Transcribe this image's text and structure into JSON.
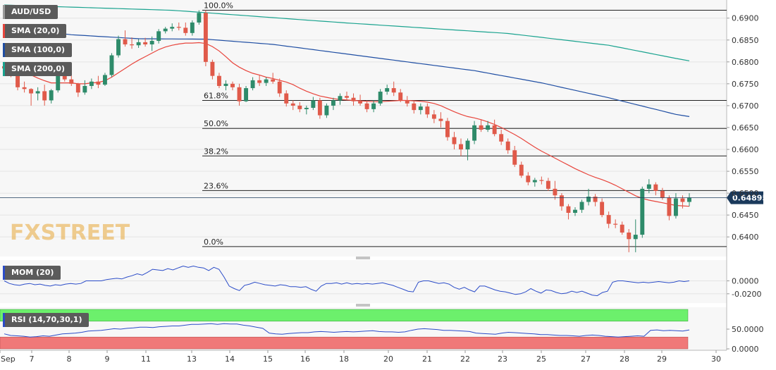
{
  "chart_data": {
    "type": "candlestick",
    "symbol": "AUD/USD",
    "current_price": "0.64895",
    "x_ticks": [
      "Sep",
      "7",
      "8",
      "9",
      "11",
      "13",
      "14",
      "15",
      "16",
      "18",
      "20",
      "21",
      "22",
      "23",
      "25",
      "27",
      "28",
      "29",
      "30"
    ],
    "y_ticks": [
      "0.6900",
      "0.6850",
      "0.6800",
      "0.6750",
      "0.6700",
      "0.6650",
      "0.6600",
      "0.6550",
      "0.6500",
      "0.6450",
      "0.6400"
    ],
    "ylim": [
      0.636,
      0.6935
    ],
    "candles": [
      [
        0.679,
        0.68,
        0.6778,
        0.6785
      ],
      [
        0.6785,
        0.6795,
        0.6765,
        0.677
      ],
      [
        0.677,
        0.6775,
        0.6735,
        0.6742
      ],
      [
        0.6742,
        0.6755,
        0.673,
        0.6738
      ],
      [
        0.6738,
        0.674,
        0.67,
        0.6728
      ],
      [
        0.6728,
        0.6742,
        0.6712,
        0.6733
      ],
      [
        0.6733,
        0.6748,
        0.67,
        0.6712
      ],
      [
        0.6712,
        0.6738,
        0.6705,
        0.6735
      ],
      [
        0.6735,
        0.6775,
        0.673,
        0.6768
      ],
      [
        0.6768,
        0.6782,
        0.6755,
        0.676
      ],
      [
        0.676,
        0.677,
        0.6745,
        0.675
      ],
      [
        0.675,
        0.6752,
        0.672,
        0.673
      ],
      [
        0.673,
        0.6758,
        0.6725,
        0.6745
      ],
      [
        0.6745,
        0.6762,
        0.6738,
        0.6755
      ],
      [
        0.6755,
        0.6768,
        0.674,
        0.6748
      ],
      [
        0.6748,
        0.6775,
        0.6745,
        0.677
      ],
      [
        0.677,
        0.682,
        0.6765,
        0.6815
      ],
      [
        0.6815,
        0.686,
        0.681,
        0.6852
      ],
      [
        0.6852,
        0.6872,
        0.6835,
        0.684
      ],
      [
        0.684,
        0.6856,
        0.683,
        0.6838
      ],
      [
        0.6838,
        0.6852,
        0.6832,
        0.6845
      ],
      [
        0.6845,
        0.6855,
        0.6835,
        0.684
      ],
      [
        0.684,
        0.6858,
        0.6825,
        0.6848
      ],
      [
        0.6848,
        0.6875,
        0.6842,
        0.687
      ],
      [
        0.687,
        0.688,
        0.6865,
        0.6876
      ],
      [
        0.6876,
        0.6888,
        0.687,
        0.688
      ],
      [
        0.688,
        0.689,
        0.6872,
        0.6878
      ],
      [
        0.6878,
        0.689,
        0.686,
        0.6866
      ],
      [
        0.6866,
        0.6895,
        0.686,
        0.689
      ],
      [
        0.689,
        0.6918,
        0.6885,
        0.6912
      ],
      [
        0.6912,
        0.6918,
        0.679,
        0.68
      ],
      [
        0.68,
        0.6805,
        0.676,
        0.6768
      ],
      [
        0.6768,
        0.6775,
        0.674,
        0.6745
      ],
      [
        0.6745,
        0.6758,
        0.6735,
        0.675
      ],
      [
        0.675,
        0.6755,
        0.6735,
        0.6742
      ],
      [
        0.6742,
        0.675,
        0.67,
        0.671
      ],
      [
        0.671,
        0.6745,
        0.6708,
        0.674
      ],
      [
        0.674,
        0.6765,
        0.6735,
        0.6758
      ],
      [
        0.6758,
        0.677,
        0.6745,
        0.6752
      ],
      [
        0.6752,
        0.6765,
        0.6745,
        0.676
      ],
      [
        0.676,
        0.6775,
        0.675,
        0.6755
      ],
      [
        0.6755,
        0.6762,
        0.672,
        0.6728
      ],
      [
        0.6728,
        0.6735,
        0.6698,
        0.6705
      ],
      [
        0.6705,
        0.6712,
        0.669,
        0.67
      ],
      [
        0.67,
        0.6708,
        0.6685,
        0.6692
      ],
      [
        0.6692,
        0.67,
        0.668,
        0.6695
      ],
      [
        0.6695,
        0.672,
        0.669,
        0.6712
      ],
      [
        0.6712,
        0.6718,
        0.667,
        0.6678
      ],
      [
        0.6678,
        0.6705,
        0.6672,
        0.67
      ],
      [
        0.67,
        0.6718,
        0.669,
        0.6712
      ],
      [
        0.6712,
        0.6728,
        0.6702,
        0.6722
      ],
      [
        0.6722,
        0.6732,
        0.6712,
        0.6718
      ],
      [
        0.6718,
        0.6728,
        0.67,
        0.671
      ],
      [
        0.671,
        0.6725,
        0.67,
        0.6705
      ],
      [
        0.6705,
        0.6712,
        0.6685,
        0.6692
      ],
      [
        0.6692,
        0.6712,
        0.6685,
        0.6705
      ],
      [
        0.6705,
        0.6738,
        0.67,
        0.6732
      ],
      [
        0.6732,
        0.6748,
        0.6725,
        0.674
      ],
      [
        0.674,
        0.6755,
        0.6722,
        0.673
      ],
      [
        0.673,
        0.6738,
        0.6708,
        0.6712
      ],
      [
        0.6712,
        0.6722,
        0.6698,
        0.6705
      ],
      [
        0.6705,
        0.6712,
        0.6682,
        0.669
      ],
      [
        0.669,
        0.6705,
        0.668,
        0.6698
      ],
      [
        0.6698,
        0.6705,
        0.6672,
        0.668
      ],
      [
        0.668,
        0.669,
        0.666,
        0.667
      ],
      [
        0.667,
        0.6685,
        0.665,
        0.6665
      ],
      [
        0.6665,
        0.6672,
        0.662,
        0.6628
      ],
      [
        0.6628,
        0.664,
        0.66,
        0.6612
      ],
      [
        0.6612,
        0.6625,
        0.6585,
        0.66
      ],
      [
        0.66,
        0.6625,
        0.6575,
        0.662
      ],
      [
        0.662,
        0.6665,
        0.6612,
        0.6655
      ],
      [
        0.6655,
        0.6668,
        0.664,
        0.6645
      ],
      [
        0.6645,
        0.6665,
        0.664,
        0.6655
      ],
      [
        0.6655,
        0.6668,
        0.663,
        0.6635
      ],
      [
        0.6635,
        0.6645,
        0.661,
        0.6618
      ],
      [
        0.6618,
        0.6625,
        0.659,
        0.6598
      ],
      [
        0.6598,
        0.6608,
        0.656,
        0.6565
      ],
      [
        0.6565,
        0.6572,
        0.6535,
        0.654
      ],
      [
        0.654,
        0.6548,
        0.6518,
        0.6525
      ],
      [
        0.6525,
        0.6535,
        0.6515,
        0.653
      ],
      [
        0.653,
        0.6538,
        0.652,
        0.6528
      ],
      [
        0.6528,
        0.6535,
        0.6505,
        0.651
      ],
      [
        0.651,
        0.6528,
        0.6485,
        0.6495
      ],
      [
        0.6495,
        0.65,
        0.646,
        0.647
      ],
      [
        0.647,
        0.6475,
        0.644,
        0.6455
      ],
      [
        0.6455,
        0.6468,
        0.6448,
        0.6462
      ],
      [
        0.6462,
        0.6485,
        0.6455,
        0.648
      ],
      [
        0.648,
        0.651,
        0.6472,
        0.6492
      ],
      [
        0.6492,
        0.6498,
        0.647,
        0.648
      ],
      [
        0.648,
        0.6488,
        0.6445,
        0.645
      ],
      [
        0.645,
        0.6458,
        0.642,
        0.643
      ],
      [
        0.643,
        0.644,
        0.642,
        0.6428
      ],
      [
        0.6428,
        0.6435,
        0.6405,
        0.641
      ],
      [
        0.641,
        0.6418,
        0.6365,
        0.6395
      ],
      [
        0.6395,
        0.644,
        0.6365,
        0.6405
      ],
      [
        0.6405,
        0.6515,
        0.6398,
        0.651
      ],
      [
        0.651,
        0.6532,
        0.65,
        0.652
      ],
      [
        0.652,
        0.6525,
        0.6495,
        0.6505
      ],
      [
        0.6505,
        0.6512,
        0.6485,
        0.649
      ],
      [
        0.649,
        0.6495,
        0.6438,
        0.6448
      ],
      [
        0.6448,
        0.65,
        0.6442,
        0.6488
      ],
      [
        0.6488,
        0.6495,
        0.6465,
        0.648
      ],
      [
        0.648,
        0.65,
        0.647,
        0.649
      ]
    ],
    "sma_20": [
      0.6798,
      0.6792,
      0.6785,
      0.6778,
      0.677,
      0.6763,
      0.6757,
      0.6752,
      0.6752,
      0.6752,
      0.6752,
      0.675,
      0.675,
      0.6752,
      0.6753,
      0.6757,
      0.6765,
      0.6775,
      0.6785,
      0.6795,
      0.6804,
      0.6812,
      0.682,
      0.6828,
      0.6834,
      0.6838,
      0.6841,
      0.6843,
      0.6843,
      0.6844,
      0.6842,
      0.6835,
      0.6825,
      0.6812,
      0.6798,
      0.6788,
      0.678,
      0.6774,
      0.677,
      0.6765,
      0.6762,
      0.6758,
      0.6754,
      0.6748,
      0.674,
      0.6733,
      0.6727,
      0.6722,
      0.6719,
      0.6716,
      0.6714,
      0.6713,
      0.6712,
      0.6711,
      0.671,
      0.6709,
      0.6709,
      0.671,
      0.6711,
      0.6712,
      0.6712,
      0.6711,
      0.671,
      0.6708,
      0.6705,
      0.67,
      0.6693,
      0.6686,
      0.668,
      0.6675,
      0.6672,
      0.6668,
      0.6663,
      0.6657,
      0.665,
      0.6642,
      0.6634,
      0.6625,
      0.6615,
      0.6605,
      0.6596,
      0.6588,
      0.658,
      0.6572,
      0.6564,
      0.6556,
      0.6549,
      0.6542,
      0.6536,
      0.6531,
      0.6525,
      0.6518,
      0.651,
      0.6502,
      0.6494,
      0.6488,
      0.6484,
      0.6481,
      0.6478,
      0.6475,
      0.6472,
      0.6471,
      0.647
    ],
    "sma_100_anchors": [
      [
        0,
        0.688
      ],
      [
        10,
        0.6862
      ],
      [
        20,
        0.6853
      ],
      [
        30,
        0.6852
      ],
      [
        40,
        0.684
      ],
      [
        50,
        0.682
      ],
      [
        60,
        0.68
      ],
      [
        70,
        0.678
      ],
      [
        80,
        0.6752
      ],
      [
        90,
        0.6718
      ],
      [
        100,
        0.668
      ],
      [
        104,
        0.667
      ]
    ],
    "sma_200_anchors": [
      [
        0,
        0.693
      ],
      [
        25,
        0.6918
      ],
      [
        50,
        0.689
      ],
      [
        75,
        0.6865
      ],
      [
        90,
        0.6838
      ],
      [
        100,
        0.6808
      ],
      [
        104,
        0.6797
      ]
    ],
    "fibonacci": [
      {
        "label": "100.0%",
        "price": 0.6918
      },
      {
        "label": "61.8%",
        "price": 0.6712
      },
      {
        "label": "50.0%",
        "price": 0.6648
      },
      {
        "label": "38.2%",
        "price": 0.6585
      },
      {
        "label": "23.6%",
        "price": 0.6506
      },
      {
        "label": "0.0%",
        "price": 0.6378
      }
    ],
    "mom": {
      "label": "MOM (20)",
      "y_ticks": [
        "0.0000",
        "-0.0200"
      ],
      "ylim": [
        -0.03,
        0.029
      ],
      "values": [
        0.0,
        -0.004,
        -0.006,
        -0.007,
        -0.005,
        -0.004,
        -0.006,
        -0.005,
        -0.007,
        -0.008,
        -0.006,
        -0.007,
        -0.005,
        -0.004,
        -0.005,
        -0.004,
        0.0,
        0.0,
        0.0,
        0.0,
        0.002,
        0.003,
        0.004,
        0.003,
        0.006,
        0.008,
        0.011,
        0.009,
        0.013,
        0.018,
        0.017,
        0.016,
        0.019,
        0.017,
        0.02,
        0.023,
        0.021,
        0.023,
        0.021,
        0.02,
        0.016,
        0.021,
        0.018,
        0.006,
        -0.008,
        -0.012,
        -0.015,
        -0.007,
        -0.005,
        -0.002,
        -0.004,
        -0.006,
        -0.007,
        -0.008,
        -0.006,
        -0.007,
        -0.009,
        -0.009,
        -0.01,
        -0.009,
        -0.013,
        -0.016,
        -0.008,
        -0.004,
        -0.004,
        -0.003,
        -0.005,
        -0.003,
        -0.005,
        -0.004,
        -0.005,
        -0.004,
        -0.005,
        -0.004,
        -0.003,
        -0.005,
        -0.007,
        -0.01,
        -0.013,
        -0.016,
        -0.017,
        -0.002,
        0.0,
        0.0,
        -0.002,
        -0.004,
        -0.003,
        -0.005,
        -0.01,
        -0.013,
        -0.01,
        -0.014,
        -0.017,
        -0.008,
        -0.008,
        -0.011,
        -0.014,
        -0.016,
        -0.017,
        -0.019,
        -0.021,
        -0.02,
        -0.017,
        -0.012,
        -0.016,
        -0.019,
        -0.014,
        -0.015,
        -0.018,
        -0.02,
        -0.019,
        -0.016,
        -0.018,
        -0.016,
        -0.019,
        -0.022,
        -0.023,
        -0.018,
        -0.016,
        -0.002,
        0.0,
        0.0,
        -0.001,
        -0.002,
        -0.003,
        -0.002,
        -0.003,
        -0.002,
        -0.001,
        -0.002,
        -0.003,
        -0.002,
        0.0,
        -0.001,
        0.0
      ]
    },
    "rsi": {
      "label": "RSI (14,70,30,1)",
      "y_ticks": [
        "50.0000",
        "0.0000"
      ],
      "overbought": 70,
      "oversold": 30,
      "ylim": [
        0,
        100
      ],
      "values": [
        38,
        34,
        33,
        32,
        30,
        31,
        33,
        32,
        35,
        38,
        39,
        40,
        42,
        45,
        46,
        47,
        49,
        51,
        50,
        52,
        53,
        55,
        55,
        54,
        56,
        57,
        58,
        58,
        60,
        62,
        62,
        63,
        64,
        62,
        64,
        63,
        63,
        60,
        58,
        55,
        52,
        40,
        38,
        37,
        39,
        40,
        41,
        41,
        43,
        44,
        43,
        42,
        43,
        44,
        43,
        44,
        45,
        46,
        44,
        43,
        43,
        42,
        43,
        47,
        50,
        51,
        50,
        49,
        47,
        47,
        46,
        45,
        44,
        40,
        39,
        38,
        37,
        40,
        42,
        41,
        40,
        39,
        38,
        36,
        36,
        35,
        34,
        34,
        33,
        32,
        34,
        35,
        34,
        32,
        31,
        30,
        31,
        32,
        33,
        32,
        47,
        48,
        46,
        47,
        46,
        45,
        48
      ]
    },
    "style": {
      "bull_color": "#2e8b6a",
      "bear_color": "#e05a4a",
      "sma20_color": "#e8453c",
      "sma100_color": "#1f4ea3",
      "sma200_color": "#1aa38f",
      "indicator_line_color": "#2b4cc8",
      "rsi_overbought_fill": "#6cf06c",
      "rsi_oversold_fill": "#f07878",
      "price_tag_color": "#1b3a5c",
      "panel_bg": "#f7f7f7"
    }
  },
  "labels": {
    "sma20": "SMA (20,0)",
    "sma100": "SMA (100,0)",
    "sma200": "SMA (200,0)",
    "watermark": "FXSTREET"
  }
}
